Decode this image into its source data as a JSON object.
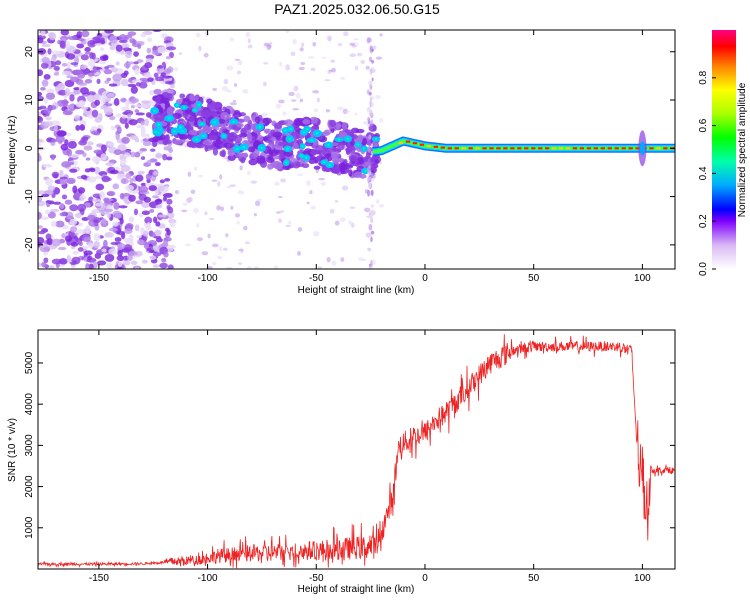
{
  "page_title": "PAZ1.2025.032.06.50.G15",
  "chart_data": [
    {
      "type": "heatmap",
      "title": "PAZ1.2025.032.06.50.G15",
      "xlabel": "Height of straight line (km)",
      "ylabel": "Frequency (Hz)",
      "xlim": [
        -178,
        115
      ],
      "ylim": [
        -25,
        24.5
      ],
      "x_ticks": [
        -150,
        -100,
        -50,
        0,
        50,
        100
      ],
      "y_ticks": [
        20,
        10,
        0,
        -10,
        -20
      ],
      "colorbar": {
        "label": "Normalized spectral amplitude",
        "ticks": [
          "0.0",
          "0.2",
          "0.4",
          "0.6",
          "0.8"
        ],
        "range": [
          0,
          1
        ],
        "colors": [
          "#ffffff",
          "#c9a6f0",
          "#8000ff",
          "#0000ff",
          "#00bfff",
          "#00ff80",
          "#80ff00",
          "#ffff00",
          "#ff8000",
          "#ff0000",
          "#ff0080"
        ]
      },
      "ridge": [
        {
          "x": -125,
          "y": 6
        },
        {
          "x": -110,
          "y": 6
        },
        {
          "x": -100,
          "y": 5
        },
        {
          "x": -90,
          "y": 3
        },
        {
          "x": -80,
          "y": 2
        },
        {
          "x": -70,
          "y": 1
        },
        {
          "x": -60,
          "y": 1
        },
        {
          "x": -50,
          "y": 1
        },
        {
          "x": -40,
          "y": 0
        },
        {
          "x": -30,
          "y": -1
        },
        {
          "x": -20,
          "y": -0.5
        },
        {
          "x": -10,
          "y": 1.5
        },
        {
          "x": 0,
          "y": 0.5
        },
        {
          "x": 10,
          "y": 0
        },
        {
          "x": 50,
          "y": 0
        },
        {
          "x": 100,
          "y": 0
        },
        {
          "x": 115,
          "y": 0
        }
      ]
    },
    {
      "type": "line",
      "xlabel": "Height of straight line (km)",
      "ylabel": "SNR (10 * v/v)",
      "xlim": [
        -178,
        115
      ],
      "ylim": [
        0,
        5800
      ],
      "x_ticks": [
        -150,
        -100,
        -50,
        0,
        50,
        100
      ],
      "y_ticks": [
        1000,
        2000,
        3000,
        4000,
        5000
      ],
      "color": "#ee2222",
      "envelope": [
        {
          "x": -178,
          "y": 120
        },
        {
          "x": -150,
          "y": 120
        },
        {
          "x": -130,
          "y": 130
        },
        {
          "x": -120,
          "y": 160
        },
        {
          "x": -105,
          "y": 220
        },
        {
          "x": -95,
          "y": 320
        },
        {
          "x": -80,
          "y": 380
        },
        {
          "x": -60,
          "y": 420
        },
        {
          "x": -40,
          "y": 480
        },
        {
          "x": -30,
          "y": 520
        },
        {
          "x": -22,
          "y": 560
        },
        {
          "x": -20,
          "y": 900
        },
        {
          "x": -15,
          "y": 1700
        },
        {
          "x": -12,
          "y": 3000
        },
        {
          "x": -5,
          "y": 3200
        },
        {
          "x": 0,
          "y": 3300
        },
        {
          "x": 5,
          "y": 3600
        },
        {
          "x": 10,
          "y": 3800
        },
        {
          "x": 20,
          "y": 4400
        },
        {
          "x": 30,
          "y": 5000
        },
        {
          "x": 40,
          "y": 5300
        },
        {
          "x": 50,
          "y": 5400
        },
        {
          "x": 60,
          "y": 5400
        },
        {
          "x": 75,
          "y": 5400
        },
        {
          "x": 90,
          "y": 5400
        },
        {
          "x": 95,
          "y": 5300
        },
        {
          "x": 97,
          "y": 3500
        },
        {
          "x": 99,
          "y": 2400
        },
        {
          "x": 102,
          "y": 1500
        },
        {
          "x": 104,
          "y": 2400
        },
        {
          "x": 115,
          "y": 2400
        }
      ]
    }
  ]
}
